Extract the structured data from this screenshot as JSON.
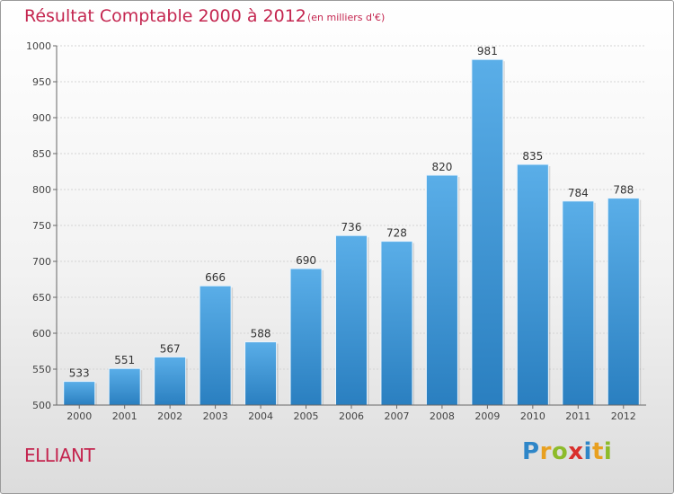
{
  "chart_data": {
    "type": "bar",
    "title": "Résultat Comptable 2000 à 2012",
    "subtitle": "(en milliers d'€)",
    "categories": [
      "2000",
      "2001",
      "2002",
      "2003",
      "2004",
      "2005",
      "2006",
      "2007",
      "2008",
      "2009",
      "2010",
      "2011",
      "2012"
    ],
    "values": [
      533,
      551,
      567,
      666,
      588,
      690,
      736,
      728,
      820,
      981,
      835,
      784,
      788
    ],
    "ylim": [
      500,
      1000
    ],
    "yticks": [
      500,
      550,
      600,
      650,
      700,
      750,
      800,
      850,
      900,
      950,
      1000
    ],
    "xlabel": "",
    "ylabel": "",
    "grid": true,
    "bar_color_top": "#5aaee8",
    "bar_color_bottom": "#2a7fc0"
  },
  "commune": "ELLIANT",
  "logo": {
    "text": "Proxiti",
    "letters": [
      {
        "ch": "P",
        "color": "#2e86c8"
      },
      {
        "ch": "r",
        "color": "#e8a020"
      },
      {
        "ch": "o",
        "color": "#8dbb2a"
      },
      {
        "ch": "x",
        "color": "#d9302c"
      },
      {
        "ch": "i",
        "color": "#2e86c8"
      },
      {
        "ch": "t",
        "color": "#e8a020"
      },
      {
        "ch": "i",
        "color": "#8dbb2a"
      }
    ]
  }
}
